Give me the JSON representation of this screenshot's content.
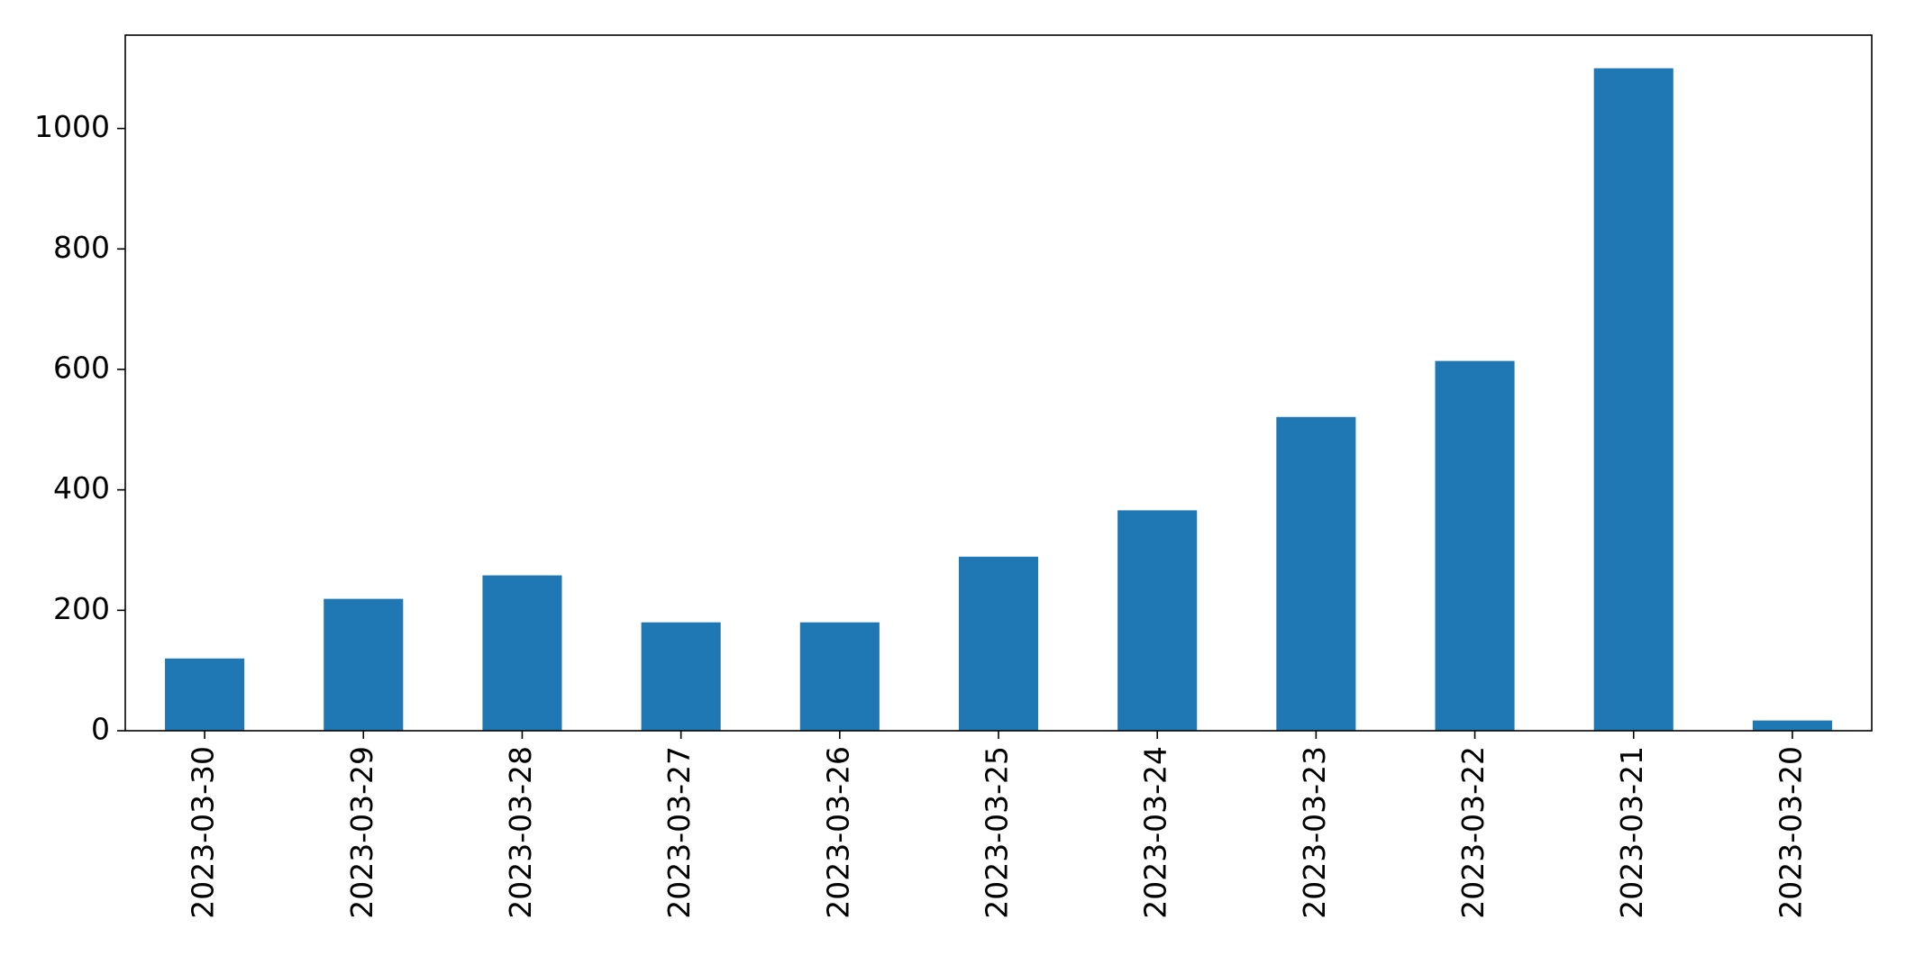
{
  "chart_data": {
    "type": "bar",
    "categories": [
      "2023-03-30",
      "2023-03-29",
      "2023-03-28",
      "2023-03-27",
      "2023-03-26",
      "2023-03-25",
      "2023-03-24",
      "2023-03-23",
      "2023-03-22",
      "2023-03-21",
      "2023-03-20"
    ],
    "values": [
      120,
      219,
      258,
      180,
      180,
      289,
      366,
      521,
      614,
      1100,
      17
    ],
    "title": "",
    "xlabel": "",
    "ylabel": "",
    "ylim": [
      0,
      1155
    ],
    "yticks": [
      0,
      200,
      400,
      600,
      800,
      1000
    ],
    "grid": false,
    "legend": "none",
    "bar_color": "#1f77b4"
  }
}
